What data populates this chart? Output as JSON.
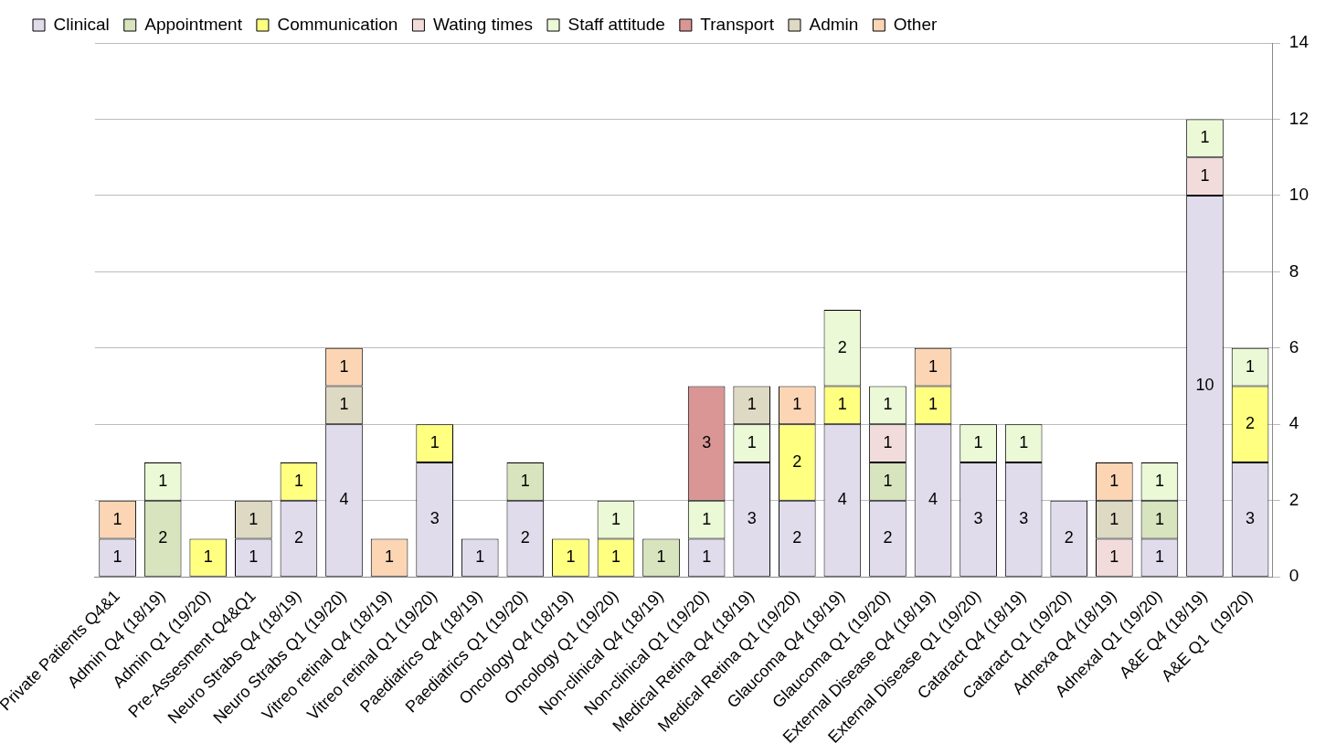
{
  "chart_data": {
    "type": "bar",
    "stacked": true,
    "data_labels": true,
    "grid": "y",
    "legend": "top left",
    "categories": [
      "Private Patients Q4&1",
      "Admin Q4 (18/19)",
      "Admin Q1 (19/20)",
      "Pre-Assesment Q4&Q1",
      "Neuro Strabs Q4 (18/19)",
      "Neuro Strabs Q1 (19/20)",
      "Vitreo retinal Q4 (18/19)",
      "Vitreo retinal Q1 (19/20)",
      "Paediatrics Q4 (18/19)",
      "Paediatrics Q1 (19/20)",
      "Oncology Q4 (18/19)",
      "Oncology Q1 (19/20)",
      "Non-clinical Q4 (18/19)",
      "Non-clinical Q1 (19/20)",
      "Medical Retina Q4 (18/19)",
      "Medical Retina Q1 (19/20)",
      "Glaucoma Q4 (18/19)",
      "Glaucoma Q1 (19/20)",
      "External Disease Q4 (18/19)",
      "External Disease Q1 (19/20)",
      "Cataract Q4 (18/19)",
      "Cataract Q1 (19/20)",
      "Adnexa Q4 (18/19)",
      "Adnexal Q1 (19/20)",
      "A&E Q4 (18/19)",
      "A&E Q1  (19/20)"
    ],
    "series": [
      {
        "name": "Clinical",
        "color": "#e0dcec",
        "values": [
          1,
          null,
          null,
          1,
          2,
          4,
          null,
          3,
          1,
          2,
          null,
          null,
          null,
          1,
          3,
          2,
          4,
          2,
          4,
          3,
          3,
          2,
          null,
          1,
          10,
          3
        ]
      },
      {
        "name": "Appointment",
        "color": "#d7e4bd",
        "values": [
          null,
          2,
          null,
          null,
          null,
          null,
          null,
          null,
          null,
          1,
          null,
          null,
          1,
          null,
          null,
          null,
          null,
          1,
          null,
          null,
          null,
          null,
          null,
          1,
          null,
          null
        ]
      },
      {
        "name": "Communication",
        "color": "#ffff80",
        "values": [
          null,
          null,
          1,
          null,
          1,
          null,
          null,
          1,
          null,
          null,
          1,
          1,
          null,
          null,
          null,
          2,
          1,
          null,
          1,
          null,
          null,
          null,
          null,
          null,
          null,
          2
        ]
      },
      {
        "name": "Wating times",
        "color": "#f2dcdb",
        "values": [
          null,
          null,
          null,
          null,
          null,
          null,
          null,
          null,
          null,
          null,
          null,
          null,
          null,
          null,
          null,
          null,
          null,
          1,
          null,
          null,
          null,
          null,
          1,
          null,
          1,
          null
        ]
      },
      {
        "name": "Staff attitude",
        "color": "#ebf9d6",
        "values": [
          null,
          1,
          null,
          null,
          null,
          null,
          null,
          null,
          null,
          null,
          null,
          1,
          null,
          1,
          1,
          null,
          2,
          1,
          null,
          1,
          1,
          null,
          null,
          1,
          1,
          1
        ]
      },
      {
        "name": "Transport",
        "color": "#d99694",
        "values": [
          null,
          null,
          null,
          null,
          null,
          null,
          null,
          null,
          null,
          null,
          null,
          null,
          null,
          3,
          null,
          null,
          null,
          null,
          null,
          null,
          null,
          null,
          null,
          null,
          null,
          null
        ]
      },
      {
        "name": "Admin",
        "color": "#ddd9c3",
        "values": [
          null,
          null,
          null,
          1,
          null,
          1,
          null,
          null,
          null,
          null,
          null,
          null,
          null,
          null,
          1,
          null,
          null,
          null,
          null,
          null,
          null,
          null,
          1,
          null,
          null,
          null
        ]
      },
      {
        "name": "Other",
        "color": "#fcd5b4",
        "values": [
          1,
          null,
          null,
          null,
          null,
          1,
          1,
          null,
          null,
          null,
          null,
          null,
          null,
          null,
          null,
          1,
          null,
          null,
          1,
          null,
          null,
          null,
          1,
          null,
          null,
          null
        ]
      }
    ],
    "ylim": [
      0,
      14
    ],
    "yticks": [
      0,
      2,
      4,
      6,
      8,
      10,
      12,
      14
    ]
  }
}
